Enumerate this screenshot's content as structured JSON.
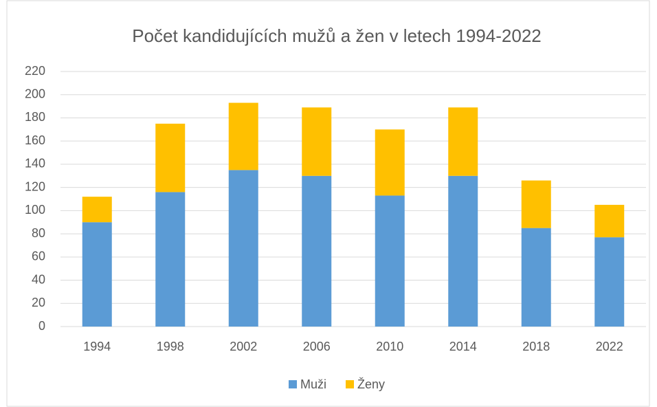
{
  "chart_data": {
    "type": "stacked_bar",
    "title": "Počet kandidujících mužů a žen v letech 1994-2022",
    "categories": [
      "1994",
      "1998",
      "2002",
      "2006",
      "2010",
      "2014",
      "2018",
      "2022"
    ],
    "series": [
      {
        "name": "Muži",
        "color": "#5b9bd5",
        "values": [
          90,
          116,
          135,
          130,
          113,
          130,
          85,
          77
        ]
      },
      {
        "name": "Ženy",
        "color": "#ffc000",
        "values": [
          22,
          59,
          58,
          59,
          57,
          59,
          41,
          28
        ]
      }
    ],
    "ylim": [
      0,
      220
    ],
    "yticks": [
      0,
      20,
      40,
      60,
      80,
      100,
      120,
      140,
      160,
      180,
      200,
      220
    ],
    "grid": true,
    "legend": "bottom"
  }
}
